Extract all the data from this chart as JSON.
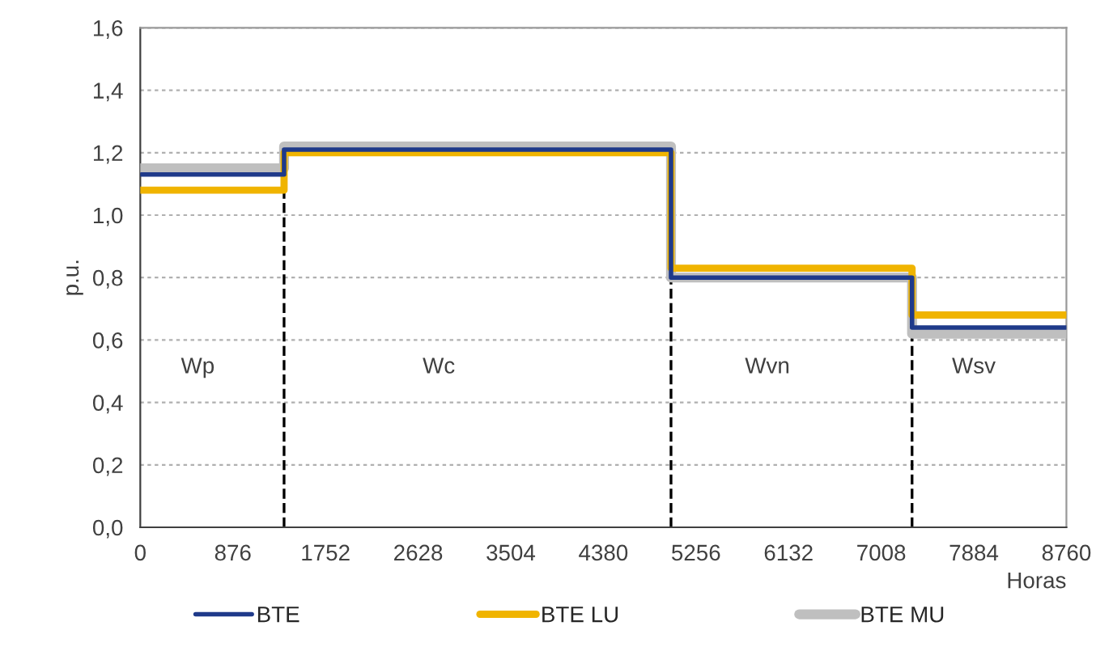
{
  "chart_data": {
    "type": "step",
    "xlabel": "Horas",
    "ylabel": "p.u.",
    "x": [
      0,
      1360,
      5020,
      7300,
      8760
    ],
    "series": [
      {
        "name": "BTE",
        "color": "#1f3a8a",
        "values": [
          1.13,
          1.21,
          0.8,
          0.64,
          0.64
        ]
      },
      {
        "name": "BTE LU",
        "color": "#f0b400",
        "values": [
          1.08,
          1.2,
          0.83,
          0.68,
          0.68
        ]
      },
      {
        "name": "BTE MU",
        "color": "#bfbfbf",
        "values": [
          1.15,
          1.22,
          0.8,
          0.62,
          0.62
        ]
      }
    ],
    "xlim": [
      0,
      8760
    ],
    "xticks": [
      0,
      876,
      1752,
      2628,
      3504,
      4380,
      5256,
      6132,
      7008,
      7884,
      8760
    ],
    "ylim": [
      0,
      1.6
    ],
    "yticks": [
      {
        "value": 0,
        "label": "0,0"
      },
      {
        "value": 0.2,
        "label": "0,2"
      },
      {
        "value": 0.4,
        "label": "0,4"
      },
      {
        "value": 0.6,
        "label": "0,6"
      },
      {
        "value": 0.8,
        "label": "0,8"
      },
      {
        "value": 1.0,
        "label": "1,0"
      },
      {
        "value": 1.2,
        "label": "1,2"
      },
      {
        "value": 1.4,
        "label": "1,4"
      },
      {
        "value": 1.6,
        "label": "1,6"
      }
    ],
    "ref_lines": [
      {
        "axis": "x",
        "value": 1360,
        "color": "#000000",
        "line_style": "dashed"
      },
      {
        "axis": "x",
        "value": 5020,
        "color": "#000000",
        "line_style": "dashed"
      },
      {
        "axis": "x",
        "value": 7300,
        "color": "#000000",
        "line_style": "dashed"
      }
    ],
    "annotations": [
      "Wp",
      "Wc",
      "Wvn",
      "Wsv"
    ],
    "grid": "y",
    "legend": "bottom",
    "line_style": "solid"
  }
}
